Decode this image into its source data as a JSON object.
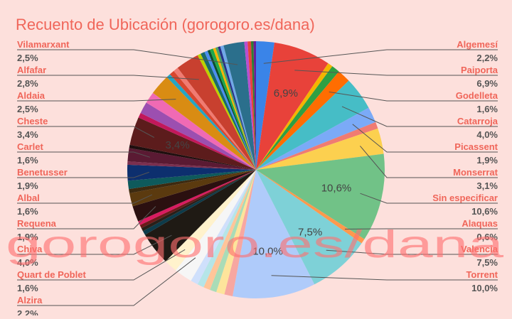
{
  "chart_data": {
    "type": "pie",
    "title": "Recuento de Ubicación (gorogoro.es/dana)",
    "watermark": "gorogoro.es/dana",
    "label_color": "#f0665a",
    "slices": [
      {
        "name": "Algemesí",
        "pct_label": "2,2%",
        "value": 2.2,
        "color": "#3a84e8",
        "label": true,
        "side": "right"
      },
      {
        "name": "Paiporta",
        "pct_label": "6,9%",
        "value": 6.9,
        "color": "#e8423a",
        "label": true,
        "side": "right",
        "inside": "6,9%"
      },
      {
        "name": "",
        "value": 0.6,
        "color": "#f4b400"
      },
      {
        "name": "",
        "value": 1.0,
        "color": "#2ea043"
      },
      {
        "name": "Godelleta",
        "pct_label": "1,6%",
        "value": 1.6,
        "color": "#ff6d01",
        "label": true,
        "side": "right"
      },
      {
        "name": "Catarroja",
        "pct_label": "4,0%",
        "value": 4.0,
        "color": "#46bdc6",
        "label": true,
        "side": "right"
      },
      {
        "name": "Picassent",
        "pct_label": "1,9%",
        "value": 1.9,
        "color": "#7baaf7",
        "label": true,
        "side": "right"
      },
      {
        "name": "",
        "value": 0.8,
        "color": "#f07b72"
      },
      {
        "name": "Monserrat",
        "pct_label": "3,1%",
        "value": 3.1,
        "color": "#fcd04f",
        "label": true,
        "side": "right"
      },
      {
        "name": "Sin especificar",
        "pct_label": "10,6%",
        "value": 10.6,
        "color": "#71c287",
        "label": true,
        "side": "right",
        "inside": "10,6%"
      },
      {
        "name": "Alaquas",
        "pct_label": "0,6%",
        "value": 0.6,
        "color": "#ff994d",
        "label": true,
        "side": "right"
      },
      {
        "name": "Valencia",
        "pct_label": "7,5%",
        "value": 7.5,
        "color": "#7ed1d7",
        "label": true,
        "side": "right",
        "inside": "7,5%"
      },
      {
        "name": "Torrent",
        "pct_label": "10,0%",
        "value": 10.0,
        "color": "#afcbfa",
        "label": true,
        "side": "right",
        "inside": "10,0%"
      },
      {
        "name": "",
        "value": 1.0,
        "color": "#f7a7a1"
      },
      {
        "name": "",
        "value": 1.0,
        "color": "#fde49b"
      },
      {
        "name": "",
        "value": 0.8,
        "color": "#a9dcb7"
      },
      {
        "name": "",
        "value": 0.8,
        "color": "#ffc599"
      },
      {
        "name": "",
        "value": 0.8,
        "color": "#b5e5e8"
      },
      {
        "name": "",
        "value": 0.9,
        "color": "#cfe0fc"
      },
      {
        "name": "Alzira",
        "pct_label": "2,2%",
        "value": 2.2,
        "color": "#f6f6f6",
        "label": true,
        "side": "left"
      },
      {
        "name": "Quart de Poblet",
        "pct_label": "1,6%",
        "value": 1.6,
        "color": "#fff2cc",
        "label": true,
        "side": "left"
      },
      {
        "name": "Chiva",
        "pct_label": "4,0%",
        "value": 4.0,
        "color": "#1f1a14",
        "label": true,
        "side": "left"
      },
      {
        "name": "",
        "value": 0.5,
        "color": "#0d3b4a"
      },
      {
        "name": "",
        "value": 0.4,
        "color": "#2a1f18"
      },
      {
        "name": "",
        "value": 0.4,
        "color": "#6b1a1a"
      },
      {
        "name": "",
        "value": 0.5,
        "color": "#d81b60"
      },
      {
        "name": "Requena",
        "pct_label": "1,9%",
        "value": 1.9,
        "color": "#2b1010",
        "label": true,
        "side": "left"
      },
      {
        "name": "Albal",
        "pct_label": "1,6%",
        "value": 1.6,
        "color": "#5b3a0f",
        "label": true,
        "side": "left"
      },
      {
        "name": "",
        "value": 0.5,
        "color": "#3d2a10"
      },
      {
        "name": "",
        "value": 1.0,
        "color": "#0e5a5c"
      },
      {
        "name": "Benetusser",
        "pct_label": "1,9%",
        "value": 1.9,
        "color": "#0d2f6e",
        "label": true,
        "side": "left"
      },
      {
        "name": "",
        "value": 0.4,
        "color": "#7a2f4f"
      },
      {
        "name": "Carlet",
        "pct_label": "1,6%",
        "value": 1.6,
        "color": "#5a1a33",
        "label": true,
        "side": "left"
      },
      {
        "name": "",
        "value": 0.4,
        "color": "#1f0f0f"
      },
      {
        "name": "Cheste",
        "pct_label": "3,4%",
        "value": 3.4,
        "color": "#5c1c1c",
        "label": true,
        "side": "left",
        "inside": "3,4%"
      },
      {
        "name": "",
        "value": 0.6,
        "color": "#c2185b"
      },
      {
        "name": "",
        "value": 1.4,
        "color": "#9c4fb0"
      },
      {
        "name": "",
        "value": 1.4,
        "color": "#f06ab4"
      },
      {
        "name": "Aldaia",
        "pct_label": "2,5%",
        "value": 2.5,
        "color": "#d98c13",
        "label": true,
        "side": "left"
      },
      {
        "name": "",
        "value": 0.5,
        "color": "#25a6c4"
      },
      {
        "name": "",
        "value": 0.6,
        "color": "#d9472f"
      },
      {
        "name": "",
        "value": 0.6,
        "color": "#f07b72"
      },
      {
        "name": "Alfafar",
        "pct_label": "2,8%",
        "value": 2.8,
        "color": "#c8402f",
        "label": true,
        "side": "left"
      },
      {
        "name": "",
        "value": 0.4,
        "color": "#bcd200"
      },
      {
        "name": "",
        "value": 0.5,
        "color": "#1a6a6a"
      },
      {
        "name": "",
        "value": 0.4,
        "color": "#4a8df0"
      },
      {
        "name": "",
        "value": 0.3,
        "color": "#0b4f2e"
      },
      {
        "name": "",
        "value": 0.4,
        "color": "#1ea84b"
      },
      {
        "name": "",
        "value": 0.3,
        "color": "#ffb300"
      },
      {
        "name": "",
        "value": 0.3,
        "color": "#4aa564"
      },
      {
        "name": "",
        "value": 0.3,
        "color": "#26318a"
      },
      {
        "name": "",
        "value": 0.4,
        "color": "#6fa8e8"
      },
      {
        "name": "Vilamarxant",
        "pct_label": "2,5%",
        "value": 2.5,
        "color": "#2b6f8c",
        "label": true,
        "side": "left"
      },
      {
        "name": "",
        "value": 0.4,
        "color": "#b84fd0"
      },
      {
        "name": "",
        "value": 0.4,
        "color": "#e8423a"
      },
      {
        "name": "",
        "value": 0.3,
        "color": "#2e7d32"
      },
      {
        "name": "",
        "value": 0.3,
        "color": "#6a1b9a"
      }
    ]
  }
}
